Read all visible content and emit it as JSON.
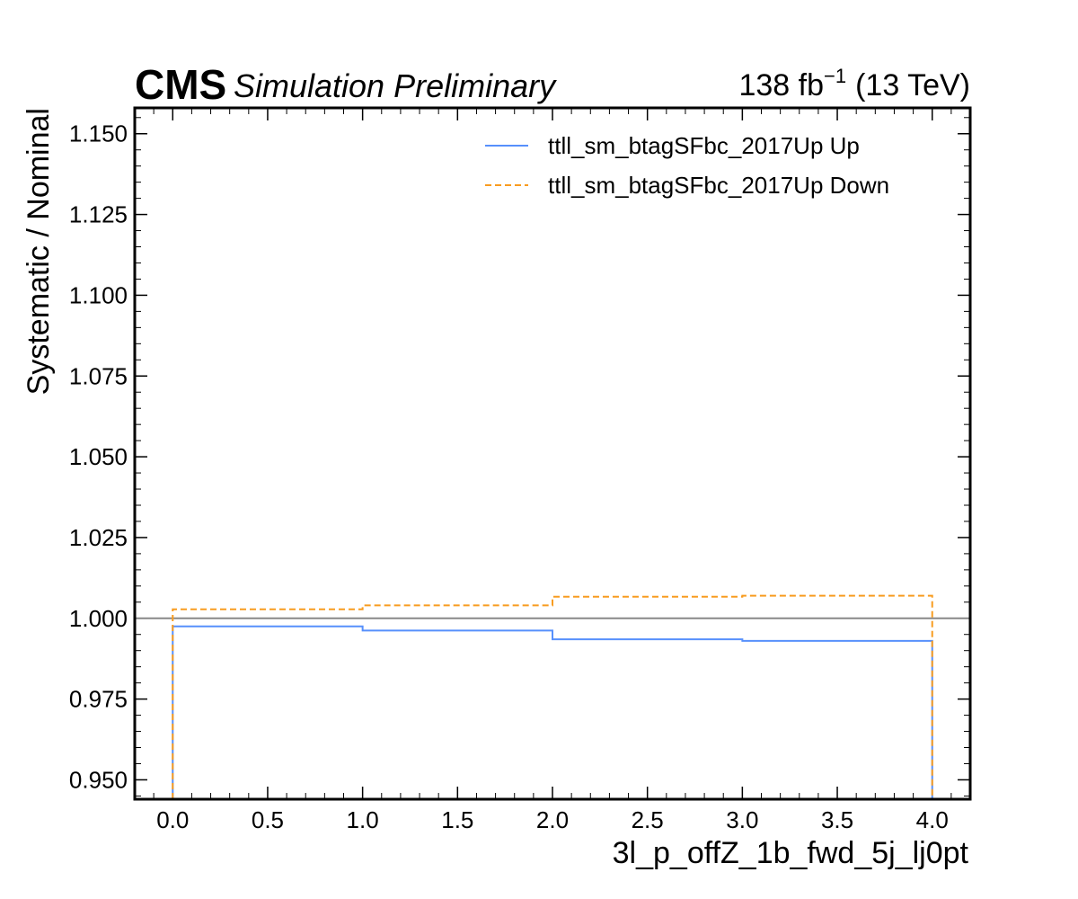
{
  "header": {
    "cms_label": "CMS",
    "status_label": "Simulation Preliminary",
    "lumi_value": "138 fb",
    "lumi_exponent": "−1",
    "energy_label": "(13 TeV)"
  },
  "chart_data": {
    "type": "line",
    "xlabel": "3l_p_offZ_1b_fwd_5j_lj0pt",
    "ylabel": "Systematic / Nominal",
    "xlim": [
      -0.2,
      4.2
    ],
    "ylim": [
      0.944,
      1.158
    ],
    "x_ticks": [
      0.0,
      0.5,
      1.0,
      1.5,
      2.0,
      2.5,
      3.0,
      3.5,
      4.0
    ],
    "x_tick_labels": [
      "0.0",
      "0.5",
      "1.0",
      "1.5",
      "2.0",
      "2.5",
      "3.0",
      "3.5",
      "4.0"
    ],
    "y_ticks": [
      0.95,
      0.975,
      1.0,
      1.025,
      1.05,
      1.075,
      1.1,
      1.125,
      1.15
    ],
    "y_tick_labels": [
      "0.950",
      "0.975",
      "1.000",
      "1.025",
      "1.050",
      "1.075",
      "1.100",
      "1.125",
      "1.150"
    ],
    "reference_line": {
      "y": 1.0,
      "color": "#888888"
    },
    "bin_edges": [
      0,
      1,
      2,
      3,
      4
    ],
    "series": [
      {
        "name": "ttll_sm_btagSFbc_2017Up Up",
        "values": [
          0.9975,
          0.9962,
          0.9935,
          0.993
        ],
        "color": "#5790fc",
        "style": "solid"
      },
      {
        "name": "ttll_sm_btagSFbc_2017Up Down",
        "values": [
          1.0028,
          1.004,
          1.0067,
          1.007
        ],
        "color": "#f89c20",
        "style": "dashed"
      }
    ],
    "legend_position": "top-right",
    "grid": false
  }
}
